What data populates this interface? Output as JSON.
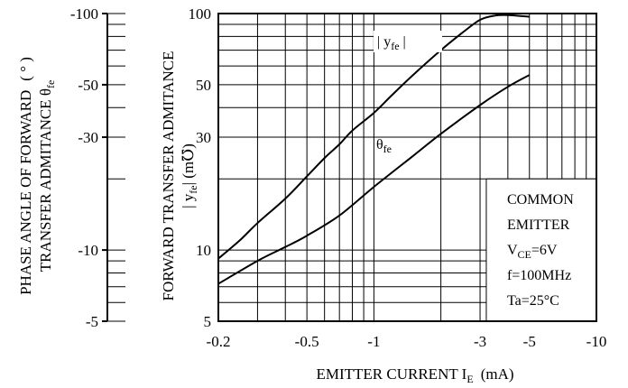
{
  "chart_data": {
    "type": "line",
    "xscale": "log",
    "yscale": "log",
    "x_domain": [
      -0.2,
      -10
    ],
    "y_domain": [
      5,
      100
    ],
    "y2_domain": [
      -5,
      -100
    ],
    "x_ticks": [
      {
        "v": -0.2,
        "label": "-0.2"
      },
      {
        "v": -0.5,
        "label": "-0.5"
      },
      {
        "v": -1,
        "label": "-1"
      },
      {
        "v": -3,
        "label": "-3"
      },
      {
        "v": -5,
        "label": "-5"
      },
      {
        "v": -10,
        "label": "-10"
      }
    ],
    "y_ticks": [
      {
        "v": 5,
        "label": "5"
      },
      {
        "v": 10,
        "label": "10"
      },
      {
        "v": 30,
        "label": "30"
      },
      {
        "v": 50,
        "label": "50"
      },
      {
        "v": 100,
        "label": "100"
      }
    ],
    "y2_ticks": [
      {
        "v": -5,
        "label": "-5"
      },
      {
        "v": -10,
        "label": "-10"
      },
      {
        "v": -30,
        "label": "-30"
      },
      {
        "v": -50,
        "label": "-50"
      },
      {
        "v": -100,
        "label": "-100"
      }
    ],
    "xlabel": "EMITTER CURRENT I",
    "xlabel_sub": "E",
    "xlabel_unit": "(mA)",
    "ylabel_line1": "FORWARD TRANSFER ADMITANCE",
    "ylabel_line2_pre": "| y",
    "ylabel_line2_sub": "fe",
    "ylabel_line2_post": "|   (m℧)",
    "y2label_line1_pre": "PHASE ANGLE OF FORWARD",
    "y2label_line1_unit": "(  °  )",
    "y2label_line2_pre": "TRANSFER ADMITANCE θ",
    "y2label_line2_sub": "fe",
    "series": [
      {
        "name": "| yfe |",
        "label_pre": "| y",
        "label_sub": "fe",
        "label_post": " |",
        "axis": "left",
        "x": [
          -0.2,
          -0.25,
          -0.3,
          -0.4,
          -0.5,
          -0.6,
          -0.7,
          -0.8,
          -1.0,
          -1.2,
          -1.5,
          -2.0,
          -2.5,
          -3.0,
          -3.5,
          -4.0,
          -5.0
        ],
        "y": [
          9.2,
          11.0,
          13.0,
          16.5,
          20.5,
          24.5,
          28.0,
          32.0,
          38.0,
          45.0,
          55.0,
          70.0,
          83.0,
          94.0,
          98.0,
          98.5,
          97.0
        ]
      },
      {
        "name": "θfe",
        "label_pre": "θ",
        "label_sub": "fe",
        "label_post": "",
        "axis": "right",
        "x": [
          -0.2,
          -0.3,
          -0.4,
          -0.5,
          -0.7,
          -1.0,
          -1.5,
          -2.0,
          -3.0,
          -4.0,
          -5.0
        ],
        "y": [
          -7.2,
          -9.0,
          -10.3,
          -11.5,
          -14.0,
          -18.5,
          -25.0,
          -31.0,
          -41.0,
          -49.0,
          -55.0
        ]
      }
    ],
    "annotation": [
      {
        "pre": "COMMON",
        "sub": "",
        "post": ""
      },
      {
        "pre": "EMITTER",
        "sub": "",
        "post": ""
      },
      {
        "pre": "V",
        "sub": "CE",
        "post": "=6V"
      },
      {
        "pre": "f=100MHz",
        "sub": "",
        "post": ""
      },
      {
        "pre": "Ta=25°C",
        "sub": "",
        "post": ""
      }
    ],
    "grid": true
  }
}
